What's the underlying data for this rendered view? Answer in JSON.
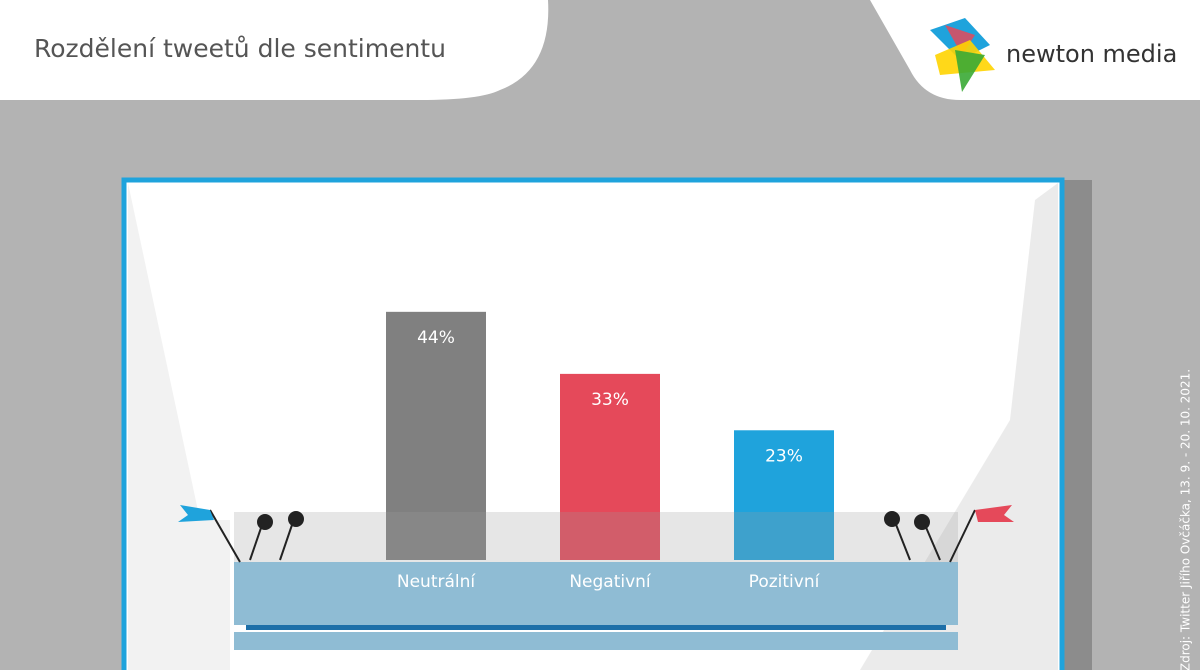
{
  "chart_data": {
    "type": "bar",
    "title": "Rozdělení tweetů dle sentimentu",
    "brand": "newton media",
    "source": "Zdroj: Twitter Jiřího Ovčáčka, 13. 9. - 20. 10. 2021.",
    "categories": [
      "Neutrální",
      "Negativní",
      "Pozitivní"
    ],
    "values": [
      44,
      33,
      23
    ],
    "value_labels": [
      "44%",
      "33%",
      "23%"
    ],
    "colors": [
      "#808080",
      "#e5495a",
      "#1fa3dc"
    ]
  }
}
